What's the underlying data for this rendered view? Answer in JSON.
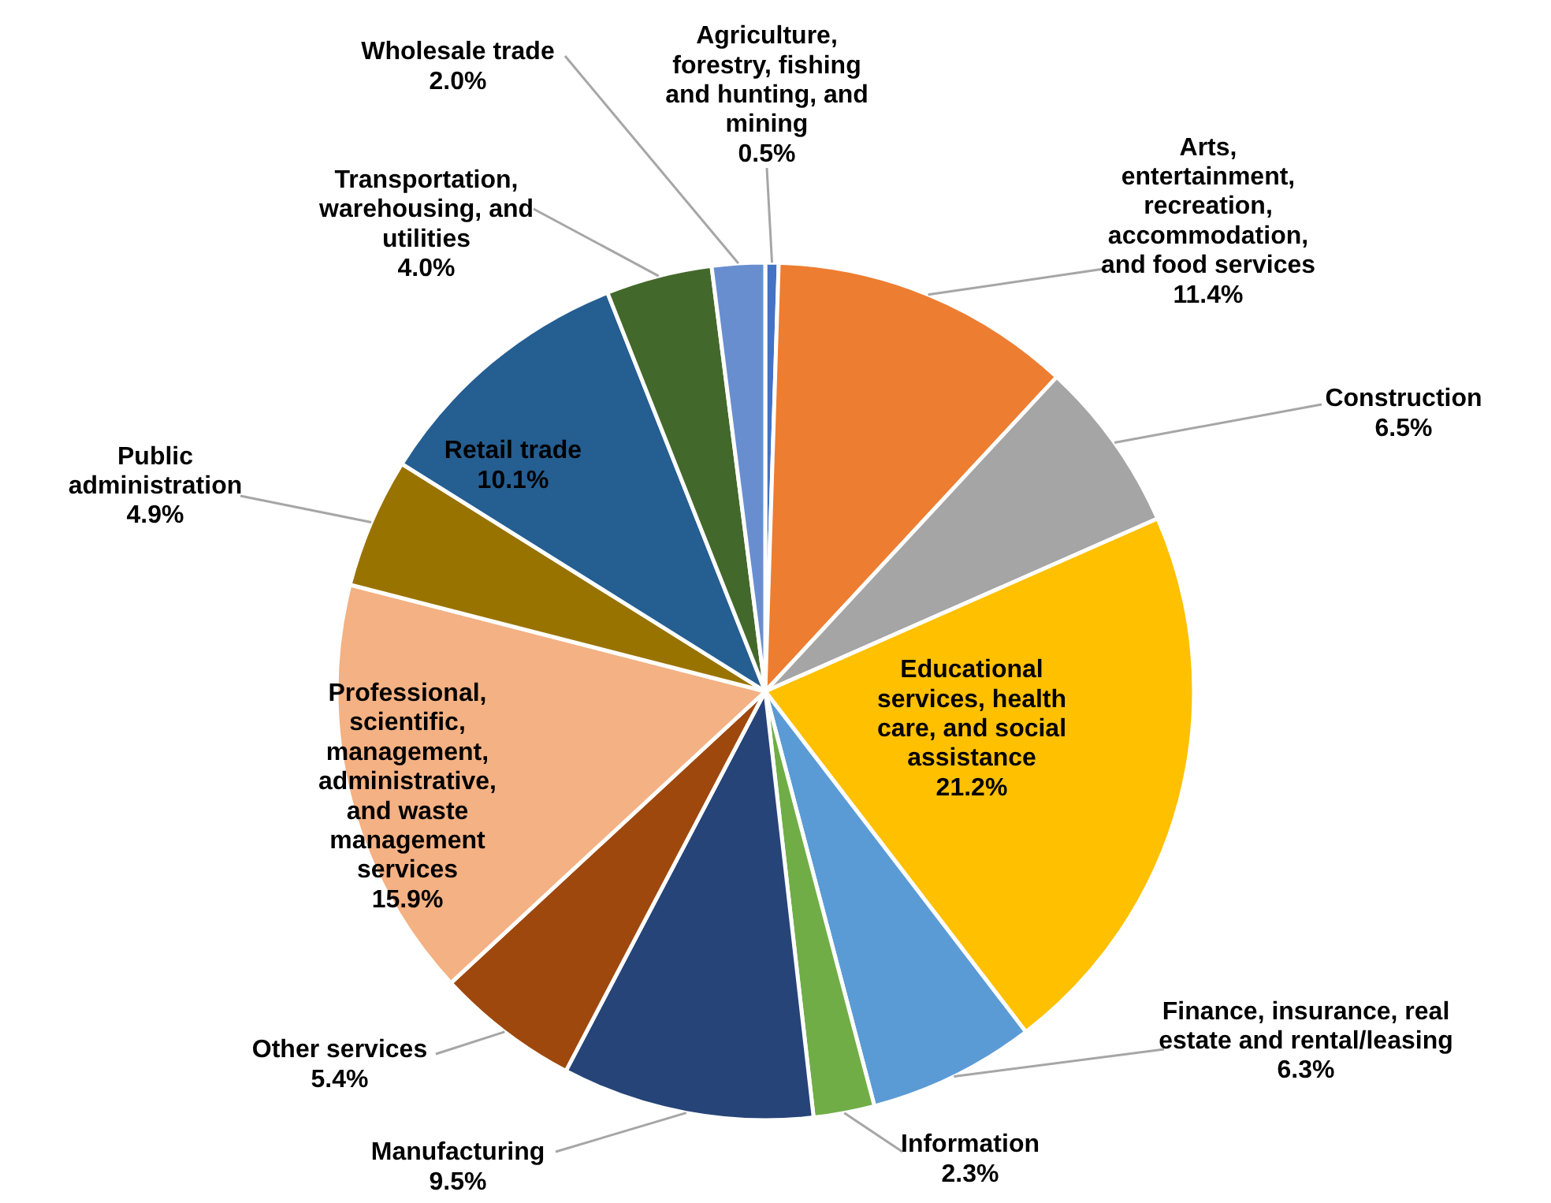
{
  "chart_data": {
    "type": "pie",
    "categories": [
      "Agriculture, forestry, fishing and hunting, and mining",
      "Arts, entertainment, recreation, accommodation, and food services",
      "Construction",
      "Educational services, health care, and social assistance",
      "Finance, insurance, real estate and rental/leasing",
      "Information",
      "Manufacturing",
      "Other services",
      "Professional, scientific, management, administrative, and waste management services",
      "Public administration",
      "Retail trade",
      "Transportation, warehousing, and utilities",
      "Wholesale trade"
    ],
    "values": [
      0.5,
      11.4,
      6.5,
      21.2,
      6.3,
      2.3,
      9.5,
      5.4,
      15.9,
      4.9,
      10.1,
      4.0,
      2.0
    ],
    "value_labels": [
      "0.5%",
      "11.4%",
      "6.5%",
      "21.2%",
      "6.3%",
      "2.3%",
      "9.5%",
      "5.4%",
      "15.9%",
      "4.9%",
      "10.1%",
      "4.0%",
      "2.0%"
    ],
    "colors": [
      "#4472c4",
      "#ed7d31",
      "#a5a5a5",
      "#ffc000",
      "#5b9bd5",
      "#70ad47",
      "#264478",
      "#9e480e",
      "#f4b183",
      "#997300",
      "#255e91",
      "#43682b",
      "#698ed0"
    ]
  }
}
